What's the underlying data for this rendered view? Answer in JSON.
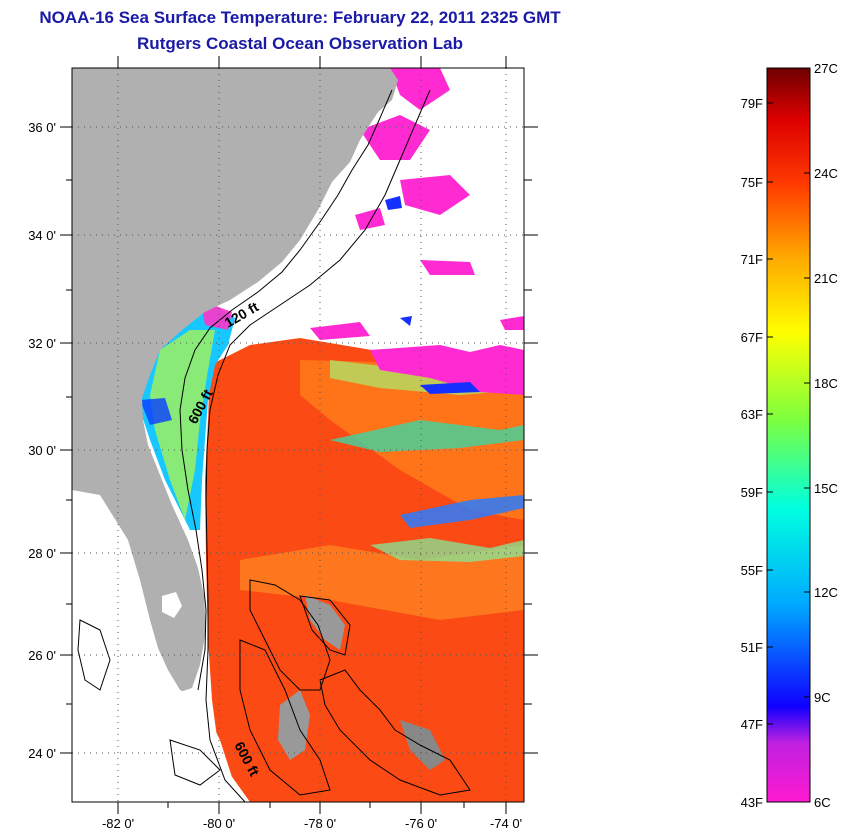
{
  "header": {
    "title": "NOAA-16 Sea Surface Temperature:  February 22, 2011 2325 GMT",
    "subtitle": "Rutgers Coastal Ocean Observation Lab"
  },
  "map": {
    "lat_labels": [
      "36 0'",
      "34 0'",
      "32 0'",
      "30 0'",
      "28 0'",
      "26 0'",
      "24 0'"
    ],
    "lon_labels": [
      "-82 0'",
      "-80 0'",
      "-78 0'",
      "-76 0'",
      "-74 0'"
    ],
    "contour_labels": [
      "120 ft",
      "600 ft",
      "600 ft"
    ],
    "land_color": "#b0b0b0",
    "cloud_color": "#ffffff"
  },
  "colorbar": {
    "fahrenheit_labels": [
      "79F",
      "75F",
      "71F",
      "67F",
      "63F",
      "59F",
      "55F",
      "51F",
      "47F",
      "43F"
    ],
    "celsius_labels": [
      "27C",
      "24C",
      "21C",
      "18C",
      "15C",
      "12C",
      "9C",
      "6C"
    ],
    "range_c": [
      6,
      27
    ],
    "colors": [
      "#ff1ad0",
      "#8a2be2",
      "#0000ff",
      "#00b4ff",
      "#00ffe0",
      "#7cff40",
      "#ffff00",
      "#ffb000",
      "#ff5a00",
      "#e00000",
      "#7a0000"
    ]
  }
}
